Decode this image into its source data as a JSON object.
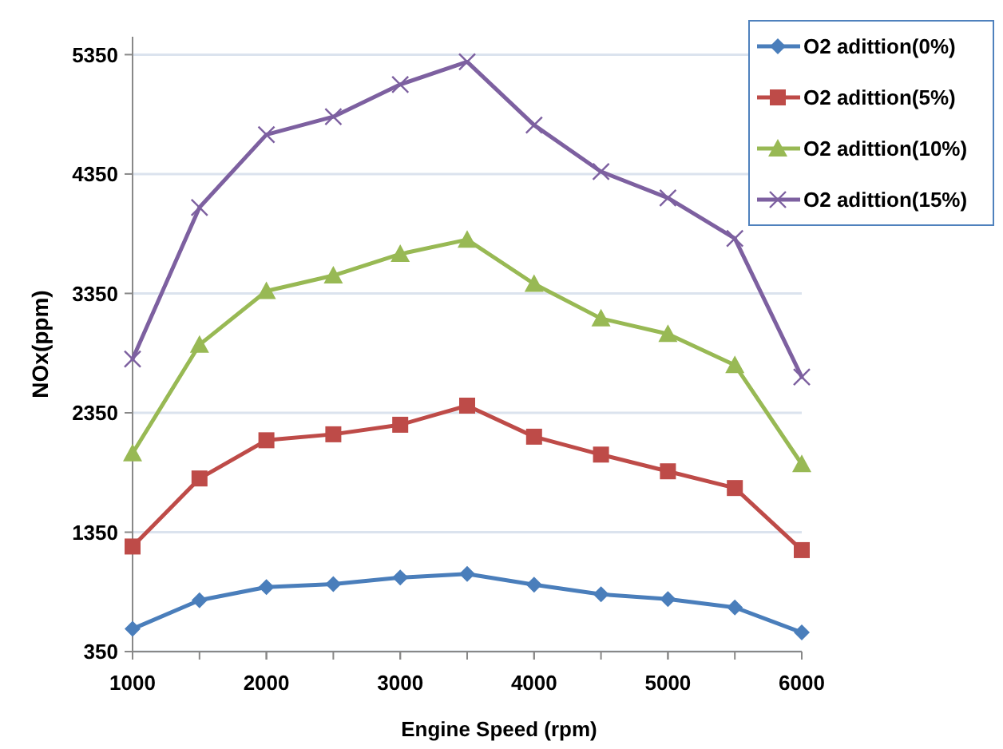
{
  "chart_data": {
    "type": "line",
    "xlabel": "Engine Speed (rpm)",
    "ylabel": "NOx(ppm)",
    "x": [
      1000,
      1500,
      2000,
      2500,
      3000,
      3500,
      4000,
      4500,
      5000,
      5500,
      6000
    ],
    "xlim": [
      1000,
      6000
    ],
    "xticks": [
      1000,
      2000,
      3000,
      4000,
      5000,
      6000
    ],
    "ylim": [
      350,
      5500
    ],
    "yticks": [
      350,
      1350,
      2350,
      3350,
      4350,
      5350
    ],
    "grid": "y",
    "legend": "top right",
    "series": [
      {
        "name": "O2 adittion(0%)",
        "color": "#4a7ebb",
        "marker": "diamond",
        "values": [
          540,
          780,
          890,
          915,
          970,
          1000,
          910,
          830,
          790,
          720,
          510
        ]
      },
      {
        "name": "O2 adittion(5%)",
        "color": "#be4b48",
        "marker": "square",
        "values": [
          1230,
          1800,
          2120,
          2170,
          2250,
          2410,
          2150,
          2000,
          1860,
          1720,
          1200
        ]
      },
      {
        "name": "O2 adittion(10%)",
        "color": "#98b954",
        "marker": "triangle",
        "values": [
          2010,
          2920,
          3370,
          3500,
          3680,
          3800,
          3430,
          3140,
          3010,
          2750,
          1920
        ]
      },
      {
        "name": "O2 adittion(15%)",
        "color": "#7d60a0",
        "marker": "cross",
        "values": [
          2800,
          4070,
          4680,
          4830,
          5100,
          5290,
          4760,
          4370,
          4150,
          3810,
          2650
        ]
      }
    ]
  }
}
